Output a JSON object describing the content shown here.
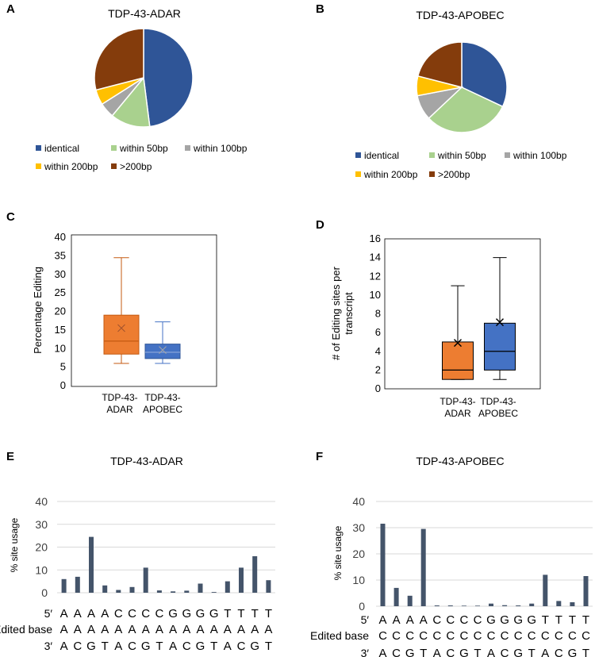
{
  "colors": {
    "identical": "#2f5597",
    "within50": "#a9d18e",
    "within100": "#a5a5a5",
    "within200": "#ffc000",
    "over200": "#843c0c",
    "adar_box": "#ed7d31",
    "apobec_box": "#4472c4",
    "bar": "#44546a",
    "grid": "#d9d9d9"
  },
  "panel_letters": [
    "A",
    "B",
    "C",
    "D",
    "E",
    "F"
  ],
  "legend_labels": [
    "identical",
    "within 50bp",
    "within 100bp",
    "within 200bp",
    ">200bp"
  ],
  "chart_data": [
    {
      "id": "A",
      "type": "pie",
      "title": "TDP-43-ADAR",
      "labels": [
        "identical",
        "within 50bp",
        "within 100bp",
        "within 200bp",
        ">200bp"
      ],
      "values": [
        48,
        13,
        5,
        5,
        29
      ]
    },
    {
      "id": "B",
      "type": "pie",
      "title": "TDP-43-APOBEC",
      "labels": [
        "identical",
        "within 50bp",
        "within 100bp",
        "within 200bp",
        ">200bp"
      ],
      "values": [
        32,
        31,
        9,
        7,
        21
      ]
    },
    {
      "id": "C",
      "type": "box",
      "ylabel": "Percentage Editing",
      "ylim": [
        0,
        40
      ],
      "ticks": [
        0,
        5,
        10,
        15,
        20,
        25,
        30,
        35,
        40
      ],
      "categories": [
        [
          "TDP-43-",
          "ADAR"
        ],
        [
          "TDP-43-",
          "APOBEC"
        ]
      ],
      "boxes": [
        {
          "min": 6,
          "q1": 8.5,
          "median": 12,
          "q3": 19,
          "max": 34.5,
          "mean": 15.5
        },
        {
          "min": 6,
          "q1": 7.3,
          "median": 9,
          "q3": 11.2,
          "max": 17.2,
          "mean": 9.6
        }
      ]
    },
    {
      "id": "D",
      "type": "box",
      "ylabel": [
        "# of Editing sites per",
        "transcript"
      ],
      "ylim": [
        0,
        16
      ],
      "ticks": [
        0,
        2,
        4,
        6,
        8,
        10,
        12,
        14,
        16
      ],
      "categories": [
        [
          "TDP-43-",
          "ADAR"
        ],
        [
          "TDP-43-",
          "APOBEC"
        ]
      ],
      "boxes": [
        {
          "min": 1,
          "q1": 1,
          "median": 2,
          "q3": 5,
          "max": 11,
          "mean": 4.9
        },
        {
          "min": 1,
          "q1": 2,
          "median": 4,
          "q3": 7,
          "max": 14,
          "mean": 7.1
        }
      ]
    },
    {
      "id": "E",
      "type": "bar",
      "title": "TDP-43-ADAR",
      "ylabel": "% site usage",
      "ylim": [
        0,
        40
      ],
      "ticks": [
        0,
        10,
        20,
        30,
        40
      ],
      "values": [
        6,
        7,
        24.5,
        3.2,
        1.2,
        2.5,
        11,
        1,
        0.6,
        0.9,
        4,
        0.3,
        5,
        11,
        16,
        5.5
      ],
      "seq_rows": [
        {
          "label": "5′",
          "bases": [
            "A",
            "A",
            "A",
            "A",
            "C",
            "C",
            "C",
            "C",
            "G",
            "G",
            "G",
            "G",
            "T",
            "T",
            "T",
            "T"
          ]
        },
        {
          "label": "Edited base",
          "bases": [
            "A",
            "A",
            "A",
            "A",
            "A",
            "A",
            "A",
            "A",
            "A",
            "A",
            "A",
            "A",
            "A",
            "A",
            "A",
            "A"
          ]
        },
        {
          "label": "3′",
          "bases": [
            "A",
            "C",
            "G",
            "T",
            "A",
            "C",
            "G",
            "T",
            "A",
            "C",
            "G",
            "T",
            "A",
            "C",
            "G",
            "T"
          ]
        }
      ]
    },
    {
      "id": "F",
      "type": "bar",
      "title": "TDP-43-APOBEC",
      "ylabel": "% site usage",
      "ylim": [
        0,
        40
      ],
      "ticks": [
        0,
        10,
        20,
        30,
        40
      ],
      "values": [
        31.5,
        7,
        4,
        29.5,
        0.3,
        0.3,
        0.2,
        0.2,
        1,
        0.4,
        0.3,
        1,
        12,
        2,
        1.5,
        11.5
      ],
      "seq_rows": [
        {
          "label": "5′",
          "bases": [
            "A",
            "A",
            "A",
            "A",
            "C",
            "C",
            "C",
            "C",
            "G",
            "G",
            "G",
            "G",
            "T",
            "T",
            "T",
            "T"
          ]
        },
        {
          "label": "Edited base",
          "bases": [
            "C",
            "C",
            "C",
            "C",
            "C",
            "C",
            "C",
            "C",
            "C",
            "C",
            "C",
            "C",
            "C",
            "C",
            "C",
            "C"
          ]
        },
        {
          "label": "3′",
          "bases": [
            "A",
            "C",
            "G",
            "T",
            "A",
            "C",
            "G",
            "T",
            "A",
            "C",
            "G",
            "T",
            "A",
            "C",
            "G",
            "T"
          ]
        }
      ]
    }
  ]
}
